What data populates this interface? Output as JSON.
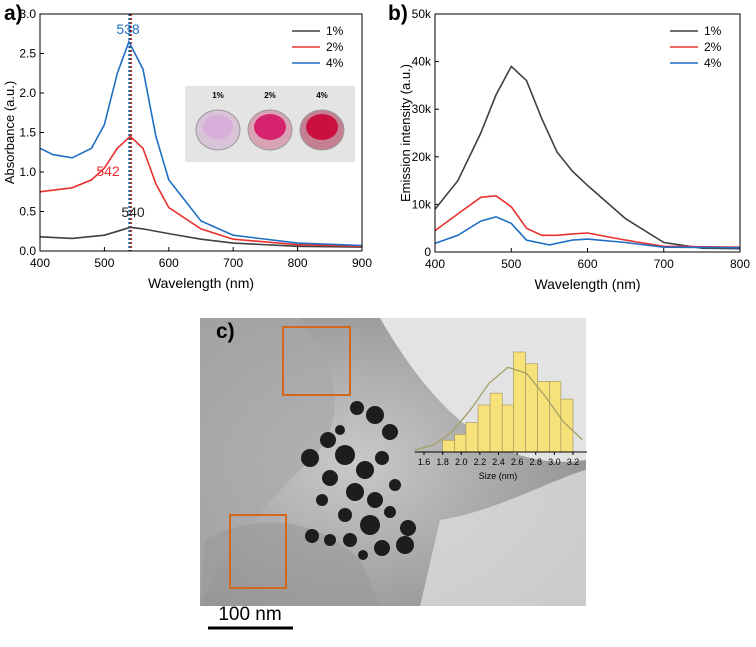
{
  "chart_data": [
    {
      "type": "line",
      "panel_label": "a)",
      "xlabel": "Wavelength (nm)",
      "ylabel": "Absorbance (a.u.)",
      "xlim": [
        400,
        900
      ],
      "xticks": [
        400,
        500,
        600,
        700,
        800,
        900
      ],
      "ylim": [
        0,
        3
      ],
      "yticks": [
        {
          "value": 0,
          "label": "0.0"
        },
        0.5,
        {
          "value": 1,
          "label": "1.0"
        },
        1.5,
        {
          "value": 2,
          "label": "2.0"
        },
        2.5,
        {
          "value": 3,
          "label": "3.0"
        }
      ],
      "legend": "upper right",
      "series": [
        {
          "name": "1%",
          "color": "#404040",
          "x": [
            400,
            450,
            500,
            520,
            540,
            560,
            600,
            650,
            700,
            800,
            900
          ],
          "values": [
            0.18,
            0.16,
            0.2,
            0.25,
            0.3,
            0.28,
            0.22,
            0.15,
            0.1,
            0.06,
            0.05
          ]
        },
        {
          "name": "2%",
          "color": "#e8312f",
          "x": [
            400,
            420,
            450,
            480,
            500,
            520,
            540,
            560,
            580,
            600,
            650,
            700,
            800,
            900
          ],
          "values": [
            0.75,
            0.77,
            0.8,
            0.9,
            1.05,
            1.3,
            1.45,
            1.3,
            0.85,
            0.55,
            0.28,
            0.15,
            0.08,
            0.06
          ]
        },
        {
          "name": "4%",
          "color": "#1f6fc4",
          "x": [
            400,
            420,
            450,
            480,
            500,
            520,
            538,
            560,
            580,
            600,
            650,
            700,
            800,
            900
          ],
          "values": [
            1.3,
            1.22,
            1.18,
            1.3,
            1.6,
            2.25,
            2.65,
            2.3,
            1.45,
            0.9,
            0.38,
            0.2,
            0.1,
            0.07
          ]
        }
      ],
      "annotations": [
        {
          "text": "538",
          "x": 538,
          "color": "#1f6fc4"
        },
        {
          "text": "542",
          "x": 542,
          "color": "#e8312f"
        },
        {
          "text": "540",
          "x": 540,
          "color": "#222222"
        }
      ],
      "inset_labels": [
        "1%",
        "2%",
        "4%"
      ]
    },
    {
      "type": "line",
      "panel_label": "b)",
      "xlabel": "Wavelength (nm)",
      "ylabel": "Emission intensity (a.u.)",
      "xlim": [
        400,
        800
      ],
      "xticks": [
        400,
        500,
        600,
        700,
        800
      ],
      "ylim": [
        0,
        50000
      ],
      "yticks": [
        0,
        {
          "value": 10000,
          "label": "10k"
        },
        {
          "value": 20000,
          "label": "20k"
        },
        {
          "value": 30000,
          "label": "30k"
        },
        {
          "value": 40000,
          "label": "40k"
        },
        {
          "value": 50000,
          "label": "50k"
        }
      ],
      "legend": "upper right",
      "series": [
        {
          "name": "1%",
          "color": "#404040",
          "x": [
            400,
            430,
            460,
            480,
            500,
            520,
            540,
            560,
            580,
            600,
            650,
            700,
            750,
            800
          ],
          "values": [
            9000,
            15000,
            25000,
            33000,
            39000,
            36000,
            28000,
            21000,
            17000,
            14000,
            7000,
            2000,
            800,
            700
          ]
        },
        {
          "name": "2%",
          "color": "#e8312f",
          "x": [
            400,
            430,
            460,
            480,
            500,
            520,
            540,
            560,
            580,
            600,
            650,
            700,
            800
          ],
          "values": [
            4500,
            8000,
            11500,
            11800,
            9500,
            5000,
            3500,
            3500,
            3800,
            4000,
            2500,
            1200,
            1000
          ]
        },
        {
          "name": "4%",
          "color": "#1f6fc4",
          "x": [
            400,
            430,
            460,
            480,
            500,
            520,
            550,
            580,
            600,
            650,
            700,
            800
          ],
          "values": [
            1800,
            3500,
            6500,
            7400,
            6000,
            2500,
            1500,
            2500,
            2700,
            2000,
            1000,
            900
          ]
        }
      ]
    },
    {
      "type": "histogram",
      "panel_label": "c)",
      "scale_bar": "100 nm",
      "xlabel": "Size (nm)",
      "xlim": [
        1.5,
        3.35
      ],
      "xticks": [
        1.6,
        1.8,
        {
          "value": 2,
          "label": "2.0"
        },
        2.2,
        2.4,
        2.6,
        2.8,
        {
          "value": 3,
          "label": "3.0"
        },
        3.2
      ],
      "bins": [
        1.8,
        1.93,
        2.05,
        2.18,
        2.31,
        2.44,
        2.56,
        2.69,
        2.82,
        2.95,
        3.07,
        3.2
      ],
      "values": [
        2,
        3,
        5,
        8,
        10,
        8,
        17,
        15,
        12,
        12,
        9
      ],
      "color": "#f7e27a",
      "fit": {
        "color": "#a5a066",
        "x": [
          1.5,
          1.7,
          1.9,
          2.1,
          2.3,
          2.5,
          2.7,
          2.9,
          3.1,
          3.3
        ],
        "values": [
          0.3,
          1.2,
          3.4,
          7.2,
          11.7,
          14.4,
          13.4,
          9.5,
          5.1,
          2.1
        ]
      }
    }
  ]
}
